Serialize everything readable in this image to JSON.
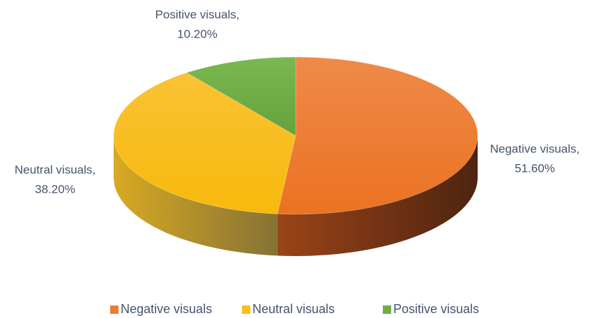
{
  "chart_data": {
    "type": "pie3d",
    "categories": [
      "Negative visuals",
      "Neutral visuals",
      "Positive visuals"
    ],
    "values": [
      51.6,
      38.2,
      10.2
    ],
    "value_labels": [
      "51.60%",
      "38.20%",
      "10.20%"
    ],
    "label_names": [
      "Negative visuals,",
      "Neutral visuals,",
      "Positive visuals,"
    ],
    "colors": [
      "#ed7d31",
      "#fbbf1a",
      "#70ad47"
    ],
    "legend": "bottom"
  }
}
